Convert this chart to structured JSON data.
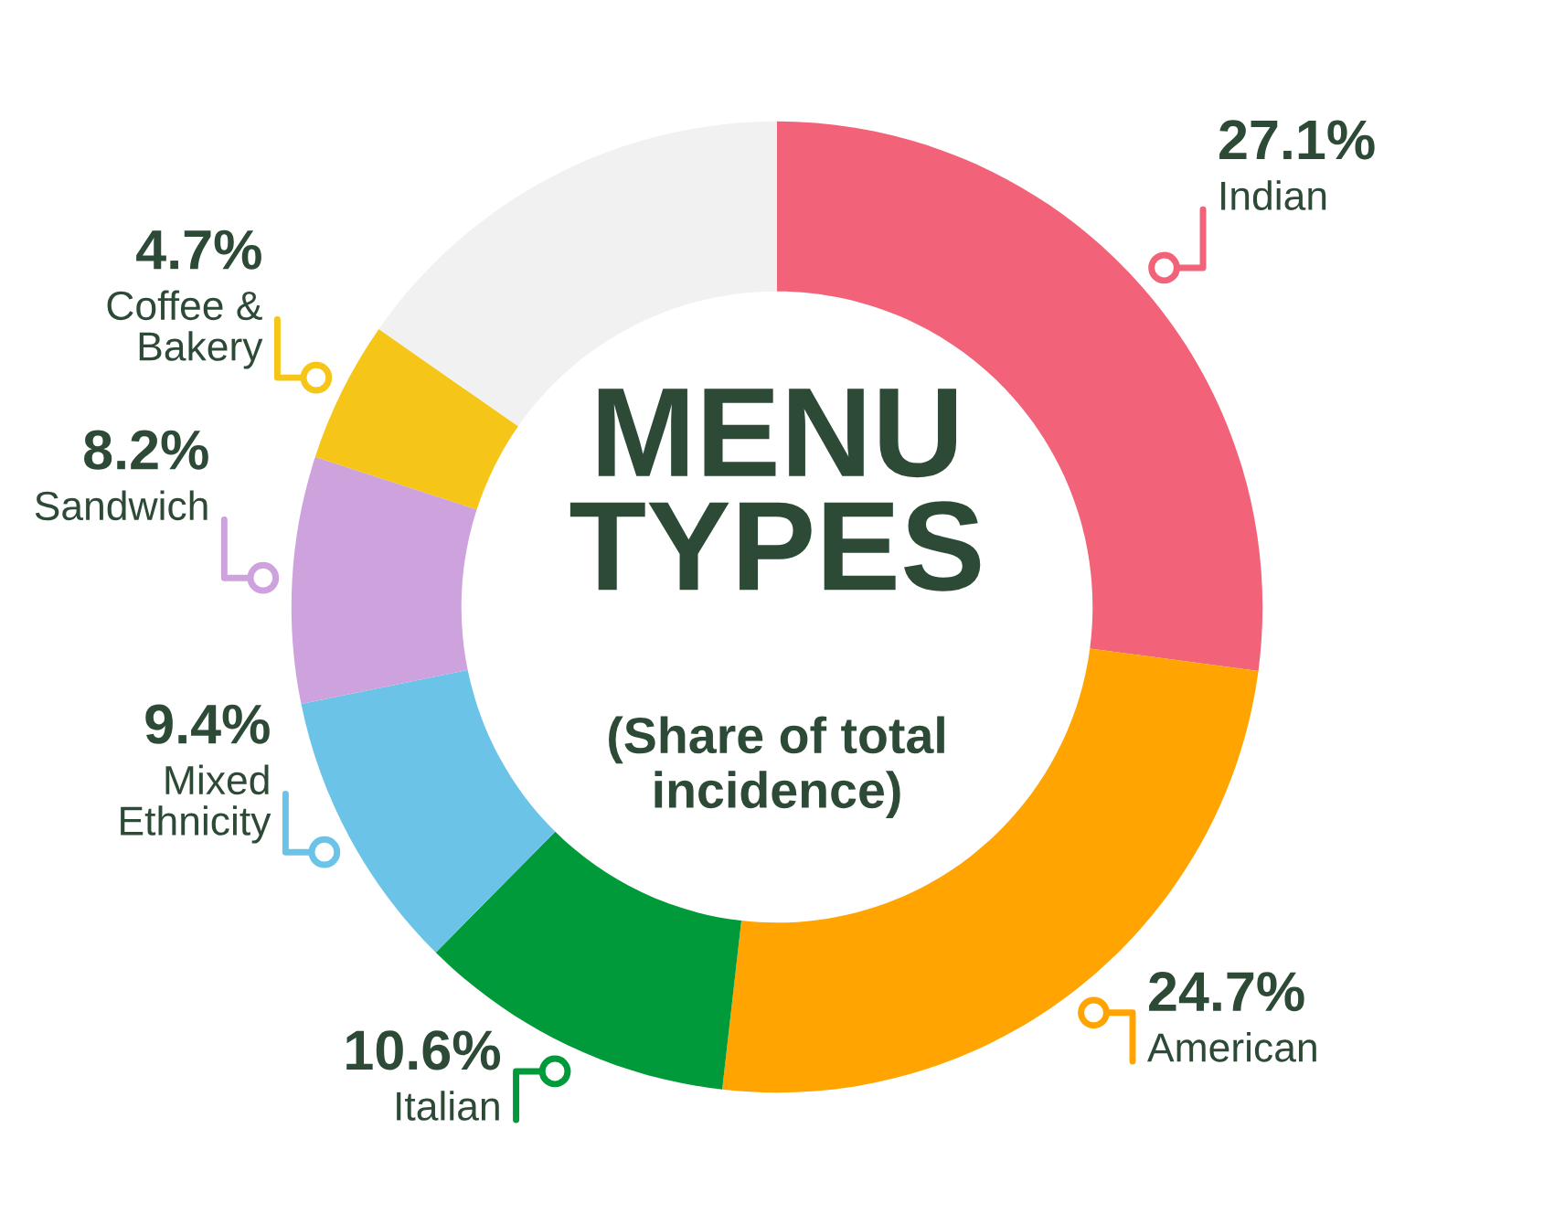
{
  "chart_data": {
    "type": "donut",
    "title": "MENU\nTYPES",
    "subtitle": "(Share of total\nincidence)",
    "categories": [
      "Indian",
      "American",
      "Italian",
      "Mixed\nEthnicity",
      "Sandwich",
      "Coffee &\nBakery",
      null
    ],
    "values": [
      27.1,
      24.7,
      10.6,
      9.4,
      8.2,
      4.7,
      15.3
    ],
    "value_labels": [
      "27.1%",
      "24.7%",
      "10.6%",
      "9.4%",
      "8.2%",
      "4.7%",
      null
    ],
    "colors": [
      "#f2637a",
      "#ffa400",
      "#009a3a",
      "#6cc3e8",
      "#cda2dd",
      "#f5c518",
      "#f0f1f0"
    ]
  }
}
